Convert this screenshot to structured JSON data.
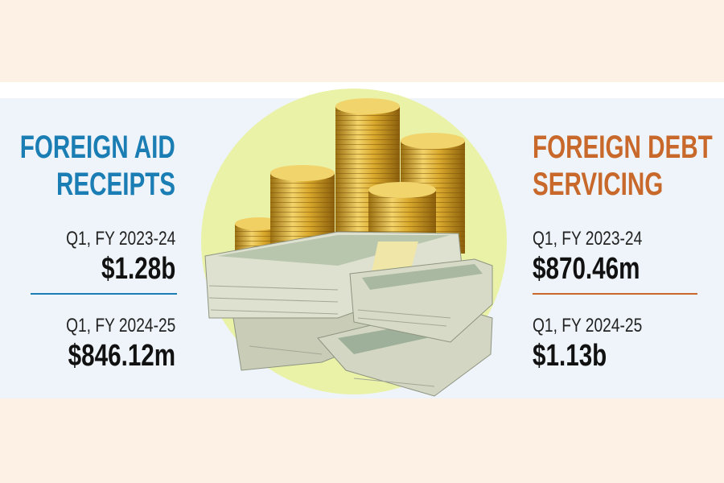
{
  "left": {
    "title": [
      "FOREIGN AID",
      "RECEIPTS"
    ],
    "entries": [
      {
        "period": "Q1, FY 2023-24",
        "amount": "$1.28b"
      },
      {
        "period": "Q1, FY 2024-25",
        "amount": "$846.12m"
      }
    ]
  },
  "right": {
    "title": [
      "FOREIGN DEBT",
      "SERVICING"
    ],
    "entries": [
      {
        "period": "Q1, FY 2023-24",
        "amount": "$870.46m"
      },
      {
        "period": "Q1, FY 2024-25",
        "amount": "$1.13b"
      }
    ]
  }
}
